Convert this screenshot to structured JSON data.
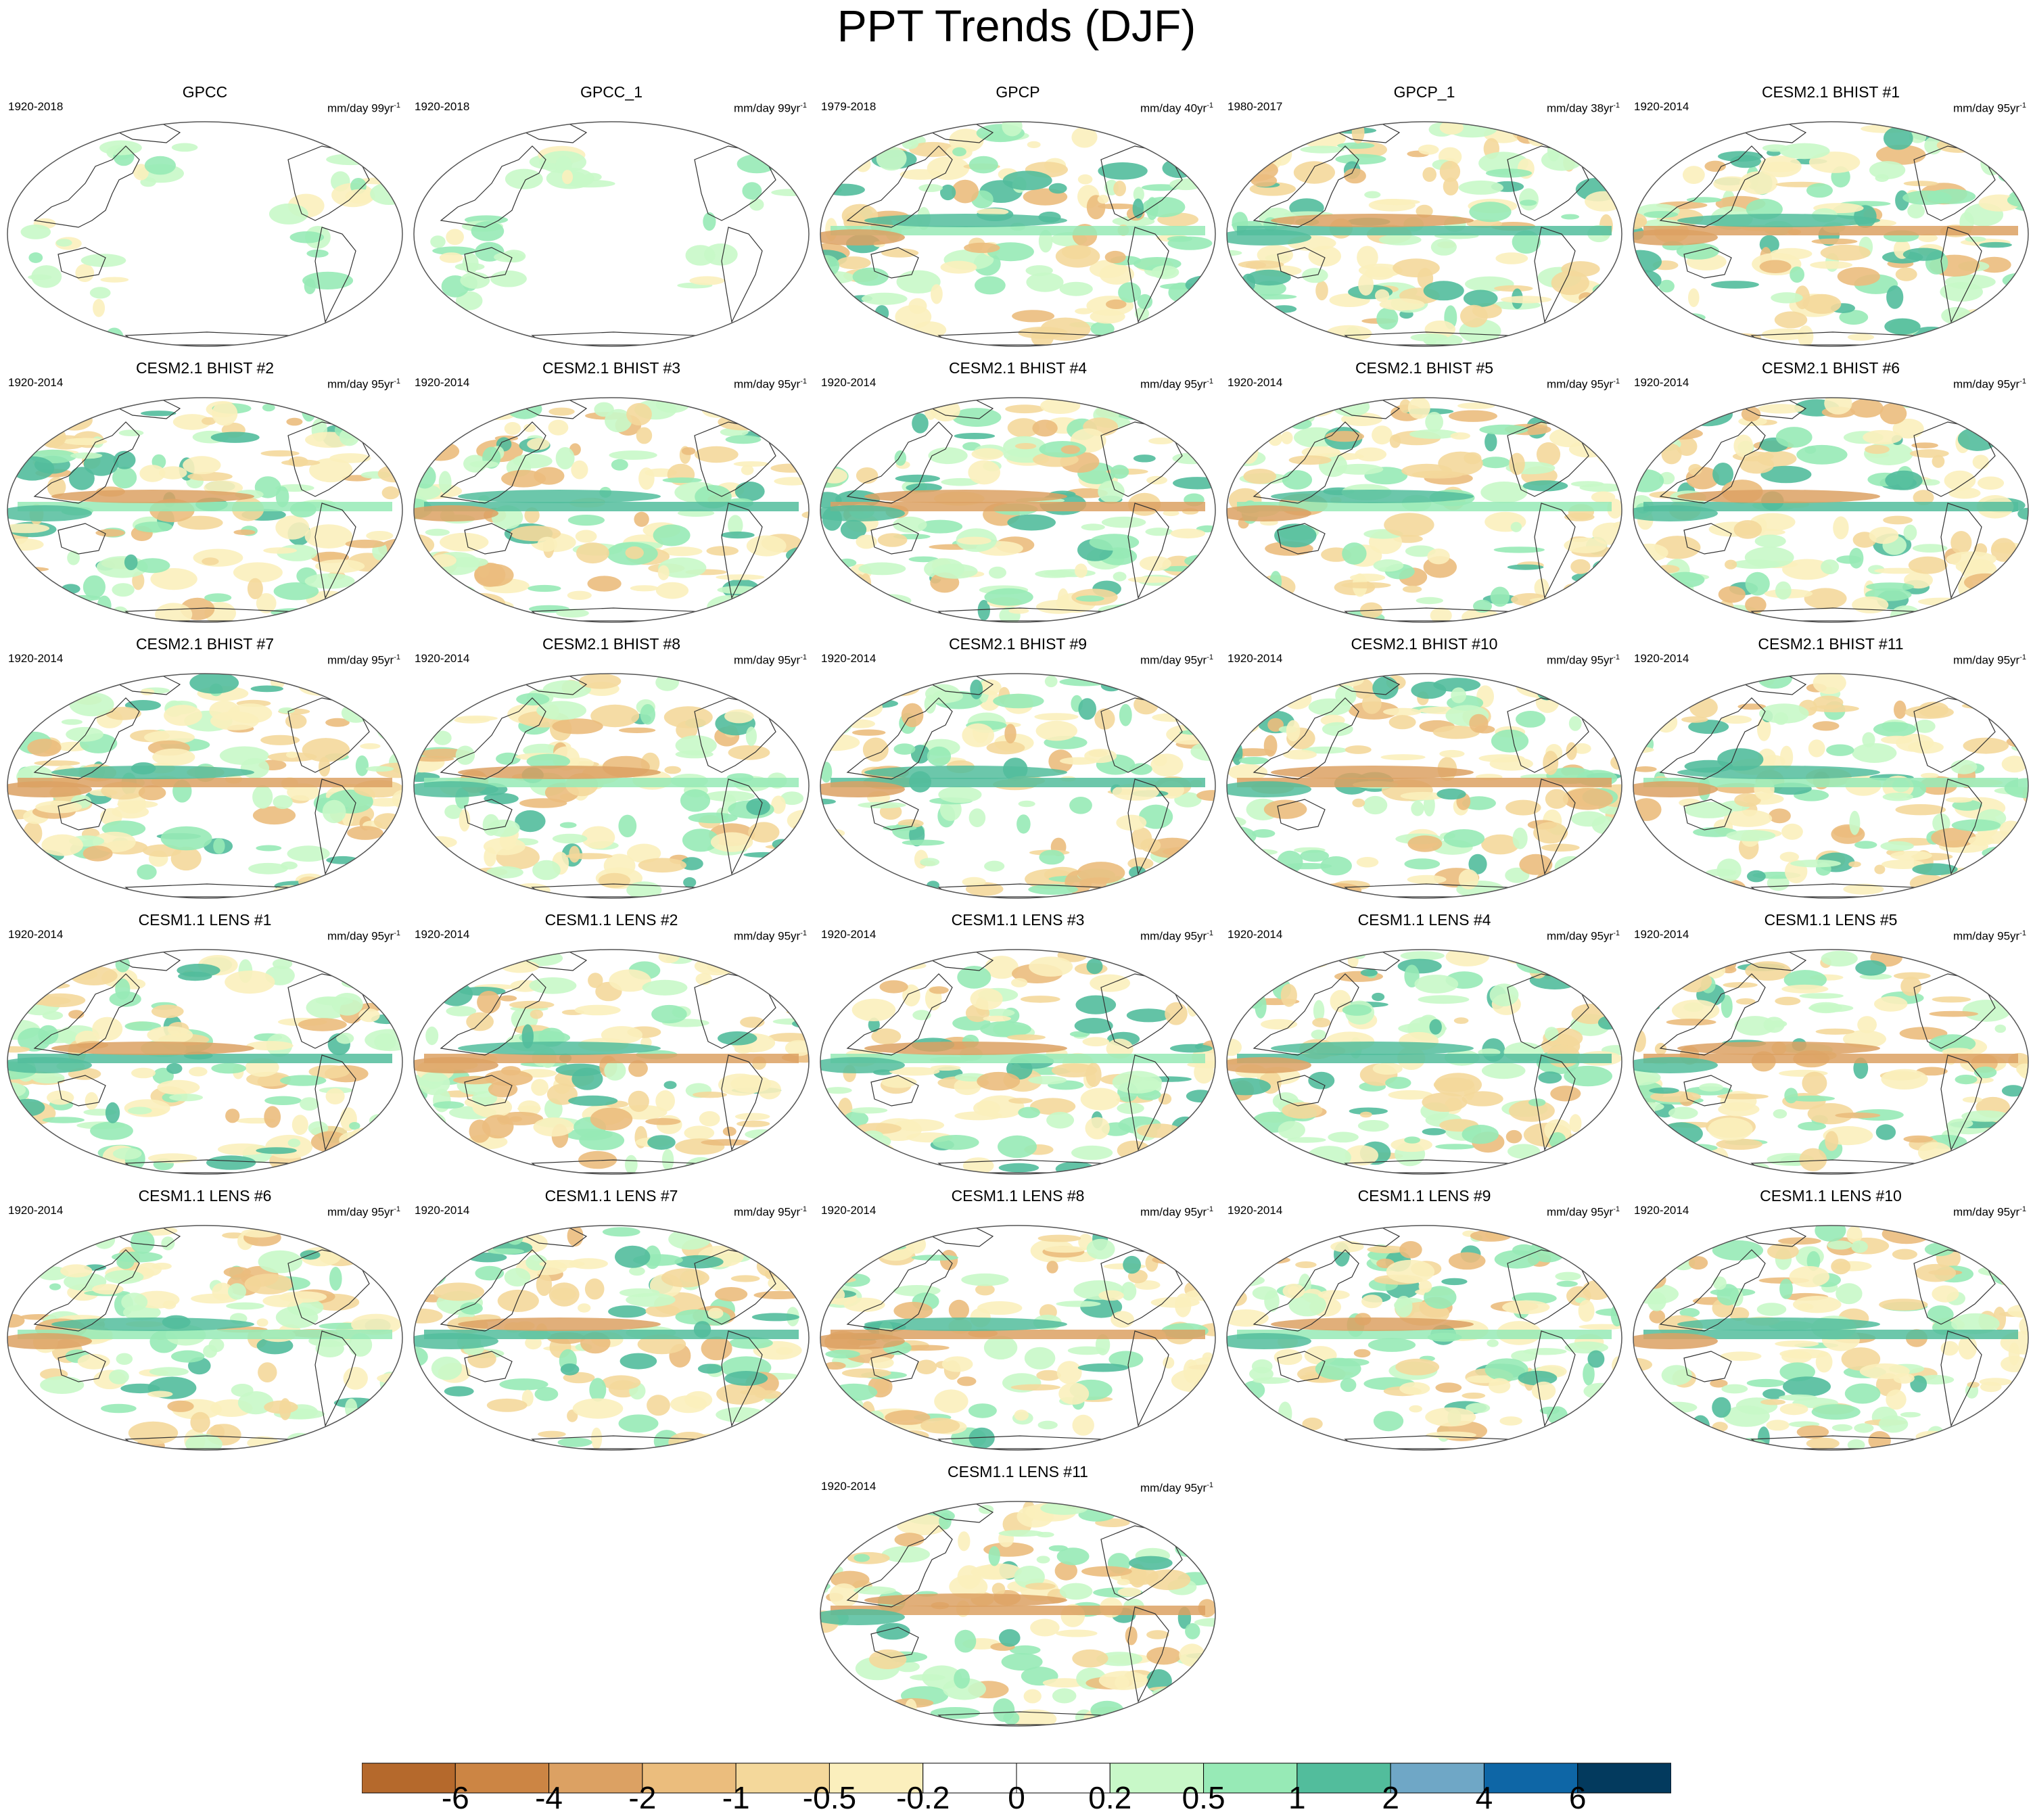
{
  "title": "PPT Trends (DJF)",
  "chart_data": {
    "type": "heatmap",
    "title": "PPT Trends (DJF)",
    "projection": "Robinson, Pacific-centered",
    "panels": [
      {
        "title": "GPCC",
        "period": "1920-2018",
        "units": "mm/day 99yr",
        "units_exp": "-1",
        "coverage": "land"
      },
      {
        "title": "GPCC_1",
        "period": "1920-2018",
        "units": "mm/day 99yr",
        "units_exp": "-1",
        "coverage": "land"
      },
      {
        "title": "GPCP",
        "period": "1979-2018",
        "units": "mm/day 40yr",
        "units_exp": "-1",
        "coverage": "global"
      },
      {
        "title": "GPCP_1",
        "period": "1980-2017",
        "units": "mm/day 38yr",
        "units_exp": "-1",
        "coverage": "global"
      },
      {
        "title": "CESM2.1 BHIST #1",
        "period": "1920-2014",
        "units": "mm/day 95yr",
        "units_exp": "-1",
        "coverage": "global"
      },
      {
        "title": "CESM2.1 BHIST #2",
        "period": "1920-2014",
        "units": "mm/day 95yr",
        "units_exp": "-1",
        "coverage": "global"
      },
      {
        "title": "CESM2.1 BHIST #3",
        "period": "1920-2014",
        "units": "mm/day 95yr",
        "units_exp": "-1",
        "coverage": "global"
      },
      {
        "title": "CESM2.1 BHIST #4",
        "period": "1920-2014",
        "units": "mm/day 95yr",
        "units_exp": "-1",
        "coverage": "global"
      },
      {
        "title": "CESM2.1 BHIST #5",
        "period": "1920-2014",
        "units": "mm/day 95yr",
        "units_exp": "-1",
        "coverage": "global"
      },
      {
        "title": "CESM2.1 BHIST #6",
        "period": "1920-2014",
        "units": "mm/day 95yr",
        "units_exp": "-1",
        "coverage": "global"
      },
      {
        "title": "CESM2.1 BHIST #7",
        "period": "1920-2014",
        "units": "mm/day 95yr",
        "units_exp": "-1",
        "coverage": "global"
      },
      {
        "title": "CESM2.1 BHIST #8",
        "period": "1920-2014",
        "units": "mm/day 95yr",
        "units_exp": "-1",
        "coverage": "global"
      },
      {
        "title": "CESM2.1 BHIST #9",
        "period": "1920-2014",
        "units": "mm/day 95yr",
        "units_exp": "-1",
        "coverage": "global"
      },
      {
        "title": "CESM2.1 BHIST #10",
        "period": "1920-2014",
        "units": "mm/day 95yr",
        "units_exp": "-1",
        "coverage": "global"
      },
      {
        "title": "CESM2.1 BHIST #11",
        "period": "1920-2014",
        "units": "mm/day 95yr",
        "units_exp": "-1",
        "coverage": "global"
      },
      {
        "title": "CESM1.1 LENS #1",
        "period": "1920-2014",
        "units": "mm/day 95yr",
        "units_exp": "-1",
        "coverage": "global"
      },
      {
        "title": "CESM1.1 LENS #2",
        "period": "1920-2014",
        "units": "mm/day 95yr",
        "units_exp": "-1",
        "coverage": "global"
      },
      {
        "title": "CESM1.1 LENS #3",
        "period": "1920-2014",
        "units": "mm/day 95yr",
        "units_exp": "-1",
        "coverage": "global"
      },
      {
        "title": "CESM1.1 LENS #4",
        "period": "1920-2014",
        "units": "mm/day 95yr",
        "units_exp": "-1",
        "coverage": "global"
      },
      {
        "title": "CESM1.1 LENS #5",
        "period": "1920-2014",
        "units": "mm/day 95yr",
        "units_exp": "-1",
        "coverage": "global"
      },
      {
        "title": "CESM1.1 LENS #6",
        "period": "1920-2014",
        "units": "mm/day 95yr",
        "units_exp": "-1",
        "coverage": "global"
      },
      {
        "title": "CESM1.1 LENS #7",
        "period": "1920-2014",
        "units": "mm/day 95yr",
        "units_exp": "-1",
        "coverage": "global"
      },
      {
        "title": "CESM1.1 LENS #8",
        "period": "1920-2014",
        "units": "mm/day 95yr",
        "units_exp": "-1",
        "coverage": "global"
      },
      {
        "title": "CESM1.1 LENS #9",
        "period": "1920-2014",
        "units": "mm/day 95yr",
        "units_exp": "-1",
        "coverage": "global"
      },
      {
        "title": "CESM1.1 LENS #10",
        "period": "1920-2014",
        "units": "mm/day 95yr",
        "units_exp": "-1",
        "coverage": "global"
      },
      {
        "title": "CESM1.1 LENS #11",
        "period": "1920-2014",
        "units": "mm/day 95yr",
        "units_exp": "-1",
        "coverage": "global"
      }
    ],
    "colorbar": {
      "labels": [
        "-6",
        "-4",
        "-2",
        "-1",
        "-0.5",
        "-0.2",
        "0",
        "0.2",
        "0.5",
        "1",
        "2",
        "4",
        "6"
      ],
      "colors": [
        "#b5692c",
        "#cc8544",
        "#dca163",
        "#ebbd7d",
        "#f4d89b",
        "#fbefbd",
        "#ffffff",
        "#ffffff",
        "#c8f8c8",
        "#97eab6",
        "#52bd9c",
        "#6fa7c6",
        "#0e66a6",
        "#033a5e"
      ]
    }
  }
}
